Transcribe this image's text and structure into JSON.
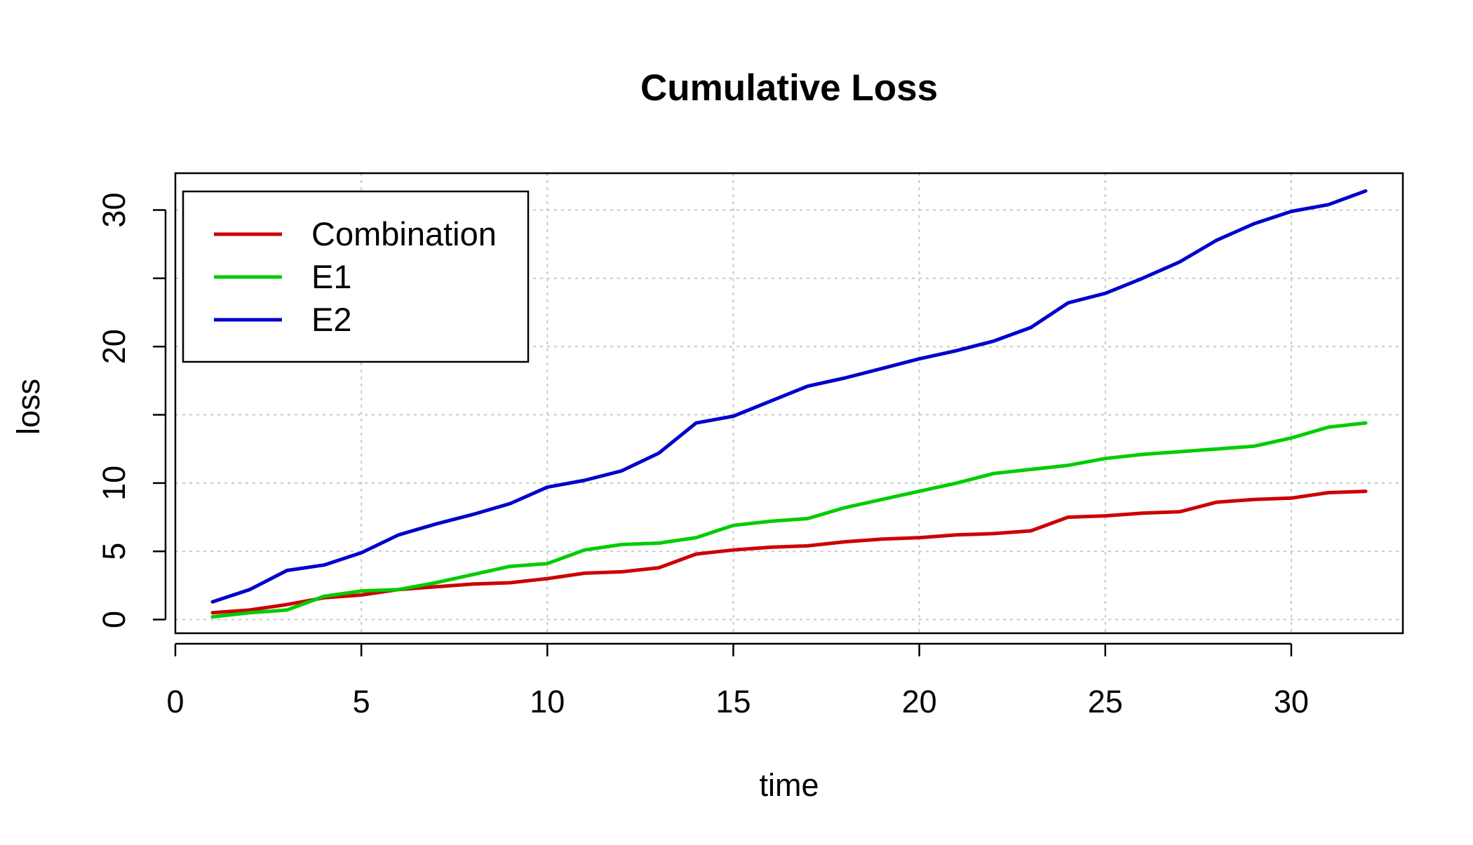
{
  "chart_data": {
    "type": "line",
    "title": "Cumulative Loss",
    "xlabel": "time",
    "ylabel": "loss",
    "xlim": [
      0,
      33
    ],
    "ylim": [
      -1,
      32.7
    ],
    "x_ticks": [
      0,
      5,
      10,
      15,
      20,
      25,
      30
    ],
    "y_ticks": [
      0,
      5,
      10,
      15,
      20,
      25,
      30
    ],
    "y_tick_labels_shown": [
      "0",
      "5",
      "10",
      "",
      "20",
      "",
      "30"
    ],
    "grid": true,
    "legend_position": "top-left",
    "x": [
      1,
      2,
      3,
      4,
      5,
      6,
      7,
      8,
      9,
      10,
      11,
      12,
      13,
      14,
      15,
      16,
      17,
      18,
      19,
      20,
      21,
      22,
      23,
      24,
      25,
      26,
      27,
      28,
      29,
      30,
      31,
      32
    ],
    "series": [
      {
        "name": "Combination",
        "color": "#cc0000",
        "values": [
          0.5,
          0.7,
          1.1,
          1.6,
          1.8,
          2.2,
          2.4,
          2.6,
          2.7,
          3.0,
          3.4,
          3.5,
          3.8,
          4.8,
          5.1,
          5.3,
          5.4,
          5.7,
          5.9,
          6.0,
          6.2,
          6.3,
          6.5,
          7.5,
          7.6,
          7.8,
          7.9,
          8.6,
          8.8,
          8.9,
          9.3,
          9.4
        ]
      },
      {
        "name": "E1",
        "color": "#00cc00",
        "values": [
          0.2,
          0.5,
          0.7,
          1.7,
          2.1,
          2.2,
          2.7,
          3.3,
          3.9,
          4.1,
          5.1,
          5.5,
          5.6,
          6.0,
          6.9,
          7.2,
          7.4,
          8.2,
          8.8,
          9.4,
          10.0,
          10.7,
          11.0,
          11.3,
          11.8,
          12.1,
          12.3,
          12.5,
          12.7,
          13.3,
          14.1,
          14.4
        ]
      },
      {
        "name": "E2",
        "color": "#0000cc",
        "values": [
          1.3,
          2.2,
          3.6,
          4.0,
          4.9,
          6.2,
          7.0,
          7.7,
          8.5,
          9.7,
          10.2,
          10.9,
          12.2,
          14.4,
          14.9,
          16.0,
          17.1,
          17.7,
          18.4,
          19.1,
          19.7,
          20.4,
          21.4,
          23.2,
          23.9,
          25.0,
          26.2,
          27.8,
          29.0,
          29.9,
          30.4,
          31.4
        ]
      }
    ]
  }
}
